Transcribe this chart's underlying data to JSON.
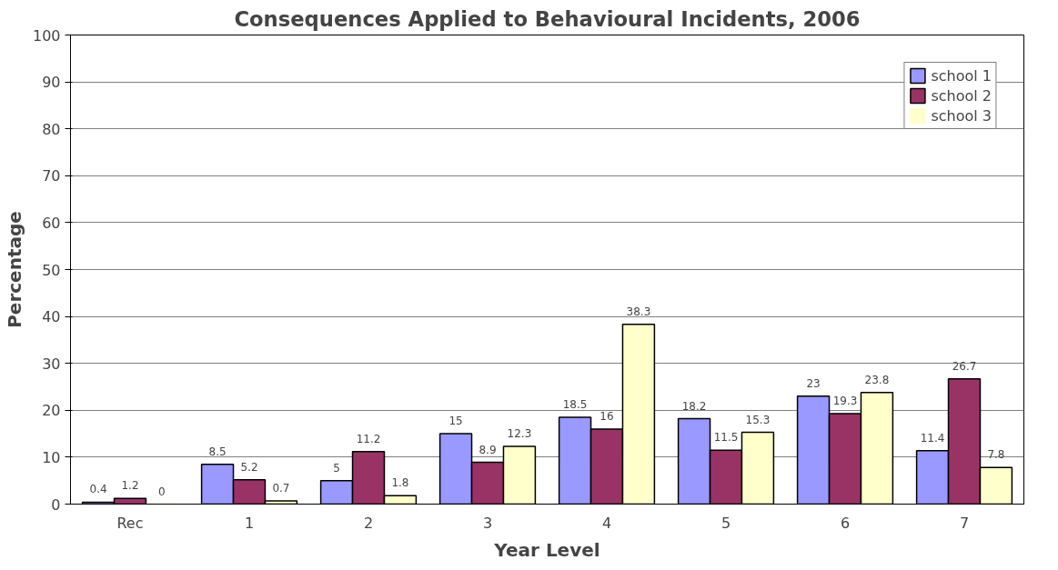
{
  "chart_data": {
    "type": "bar",
    "title": "Consequences Applied to Behavioural Incidents, 2006",
    "xlabel": "Year Level",
    "ylabel": "Percentage",
    "categories": [
      "Rec",
      "1",
      "2",
      "3",
      "4",
      "5",
      "6",
      "7"
    ],
    "series": [
      {
        "name": "school 1",
        "color": "#9999ff",
        "values": [
          0.4,
          8.5,
          5,
          15,
          18.5,
          18.2,
          23,
          11.4
        ]
      },
      {
        "name": "school 2",
        "color": "#993366",
        "values": [
          1.2,
          5.2,
          11.2,
          8.9,
          16,
          11.5,
          19.3,
          26.7
        ]
      },
      {
        "name": "school 3",
        "color": "#ffffcc",
        "values": [
          0,
          0.7,
          1.8,
          12.3,
          38.3,
          15.3,
          23.8,
          7.8
        ]
      }
    ],
    "ylim": [
      0,
      100
    ],
    "yticks": [
      0,
      10,
      20,
      30,
      40,
      50,
      60,
      70,
      80,
      90,
      100
    ],
    "grid": "y",
    "legend": "top right",
    "data_labels": true
  }
}
